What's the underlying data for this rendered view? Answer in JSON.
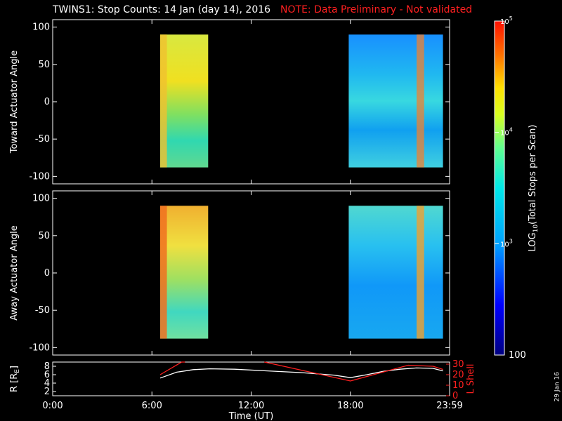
{
  "title": {
    "main": "TWINS1: Stop Counts: 14 Jan (day  14), 2016",
    "note": "NOTE: Data Preliminary - Not validated"
  },
  "side_date": "29 Jan 16",
  "colors": {
    "note": "#ff2020",
    "lshell": "#ff2020",
    "radius": "#ffffff"
  },
  "chart_data": [
    {
      "type": "heatmap",
      "panel": "toward",
      "ylabel": "Toward Actuator Angle",
      "xlabel": "",
      "xlim": [
        0,
        24
      ],
      "ylim": [
        -110,
        110
      ],
      "yticks": [
        -100,
        -50,
        0,
        50,
        100
      ],
      "data_windows": [
        {
          "x": [
            6.5,
            9.4
          ],
          "y": [
            -88,
            90
          ]
        },
        {
          "x": [
            17.9,
            23.6
          ],
          "y": [
            -88,
            90
          ]
        }
      ]
    },
    {
      "type": "heatmap",
      "panel": "away",
      "ylabel": "Away Actuator Angle",
      "xlabel": "",
      "xlim": [
        0,
        24
      ],
      "ylim": [
        -110,
        110
      ],
      "yticks": [
        -100,
        -50,
        0,
        50,
        100
      ],
      "data_windows": [
        {
          "x": [
            6.5,
            9.4
          ],
          "y": [
            -88,
            90
          ]
        },
        {
          "x": [
            17.9,
            23.6
          ],
          "y": [
            -88,
            90
          ]
        }
      ]
    },
    {
      "type": "line",
      "panel": "orbit",
      "ylabel": "R [R",
      "ylabel_sub": "E",
      "y2label": "L Shell",
      "xlabel": "Time (UT)",
      "xlim": [
        0,
        24
      ],
      "ylim": [
        1,
        9
      ],
      "y2lim": [
        0,
        32
      ],
      "yticks": [
        2,
        4,
        6,
        8
      ],
      "y2ticks": [
        0,
        10,
        20,
        30
      ],
      "xticks": [
        0,
        6,
        12,
        18,
        24
      ],
      "xticklabels": [
        "0:00",
        "6:00",
        "12:00",
        "18:00",
        "23:59"
      ],
      "series": [
        {
          "x": [
            6.5,
            7.5,
            8.5,
            9.5,
            11,
            13,
            15,
            17,
            18,
            19,
            20,
            21,
            22,
            23,
            23.6
          ],
          "y": [
            5.2,
            6.6,
            7.2,
            7.4,
            7.3,
            6.9,
            6.5,
            5.9,
            5.3,
            6.0,
            6.8,
            7.3,
            7.6,
            7.5,
            6.9
          ]
        },
        {
          "axis": "y2",
          "x": [
            6.5,
            7.8,
            8.0
          ],
          "y": [
            20,
            32,
            34
          ]
        },
        {
          "axis": "y2",
          "x": [
            12.8,
            13.1,
            18.0,
            21.5,
            23.0,
            23.6
          ],
          "y": [
            34,
            31,
            14,
            29,
            28,
            25
          ]
        }
      ]
    },
    {
      "type": "colorbar",
      "label": "LOG",
      "label_sub": "10",
      "label_rest": "(Total Stops per Scan)",
      "min": 100,
      "max": 100000,
      "ticks": [
        {
          "value": 1000,
          "mantissa": "10",
          "exp": "3"
        },
        {
          "value": 10000,
          "mantissa": "10",
          "exp": "4"
        },
        {
          "value": 100000,
          "mantissa": "10",
          "exp": "5"
        }
      ],
      "min_label": "100"
    }
  ]
}
